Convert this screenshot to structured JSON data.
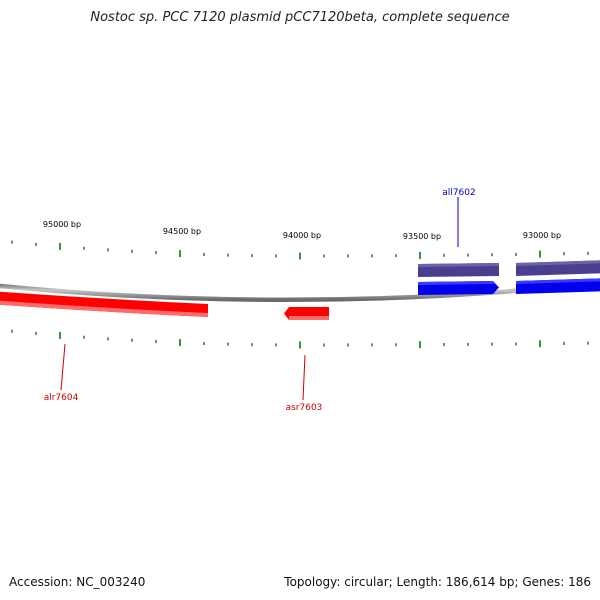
{
  "title": "Nostoc sp. PCC 7120 plasmid pCC7120beta, complete sequence",
  "ruler_labels": [
    "95000 bp",
    "94500 bp",
    "94000 bp",
    "93500 bp",
    "93000 bp"
  ],
  "genes": [
    {
      "name": "all7602",
      "strand": "minus",
      "color": "#0000ee"
    },
    {
      "name": "alr7604",
      "strand": "plus",
      "color": "#cc0000"
    },
    {
      "name": "asr7603",
      "strand": "plus",
      "color": "#cc0000"
    }
  ],
  "colors": {
    "forward_gene": "#ff0000",
    "reverse_gene": "#0000ff",
    "reverse_gene_shadow": "#4a3f8f",
    "ticks": "#0a7a0a",
    "backbone": "#8a8a8a"
  },
  "footer": {
    "accession": "Accession: NC_003240",
    "summary": "Topology: circular; Length: 186,614 bp; Genes: 186"
  }
}
